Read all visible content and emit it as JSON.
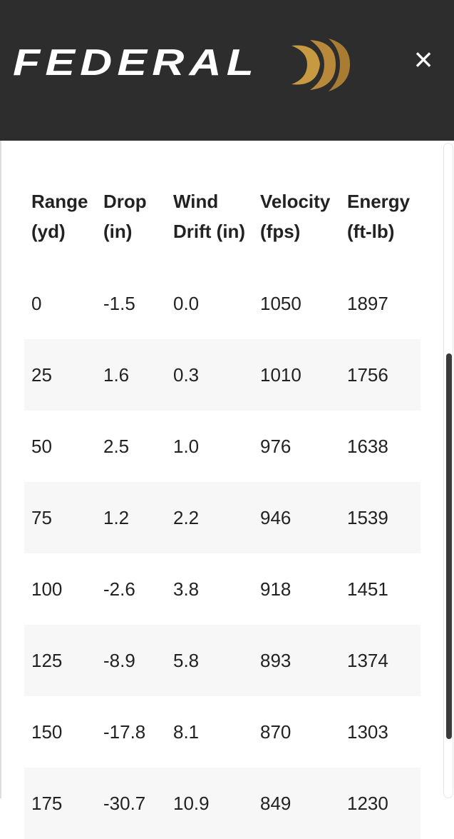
{
  "header": {
    "logo_text": "FEDERAL",
    "close": "×"
  },
  "table": {
    "columns": [
      "Range (yd)",
      "Drop (in)",
      "Wind Drift (in)",
      "Velocity (fps)",
      "Energy (ft-lb)"
    ],
    "rows": [
      [
        "0",
        "-1.5",
        "0.0",
        "1050",
        "1897"
      ],
      [
        "25",
        "1.6",
        "0.3",
        "1010",
        "1756"
      ],
      [
        "50",
        "2.5",
        "1.0",
        "976",
        "1638"
      ],
      [
        "75",
        "1.2",
        "2.2",
        "946",
        "1539"
      ],
      [
        "100",
        "-2.6",
        "3.8",
        "918",
        "1451"
      ],
      [
        "125",
        "-8.9",
        "5.8",
        "893",
        "1374"
      ],
      [
        "150",
        "-17.8",
        "8.1",
        "870",
        "1303"
      ],
      [
        "175",
        "-30.7",
        "10.9",
        "849",
        "1230"
      ]
    ]
  }
}
